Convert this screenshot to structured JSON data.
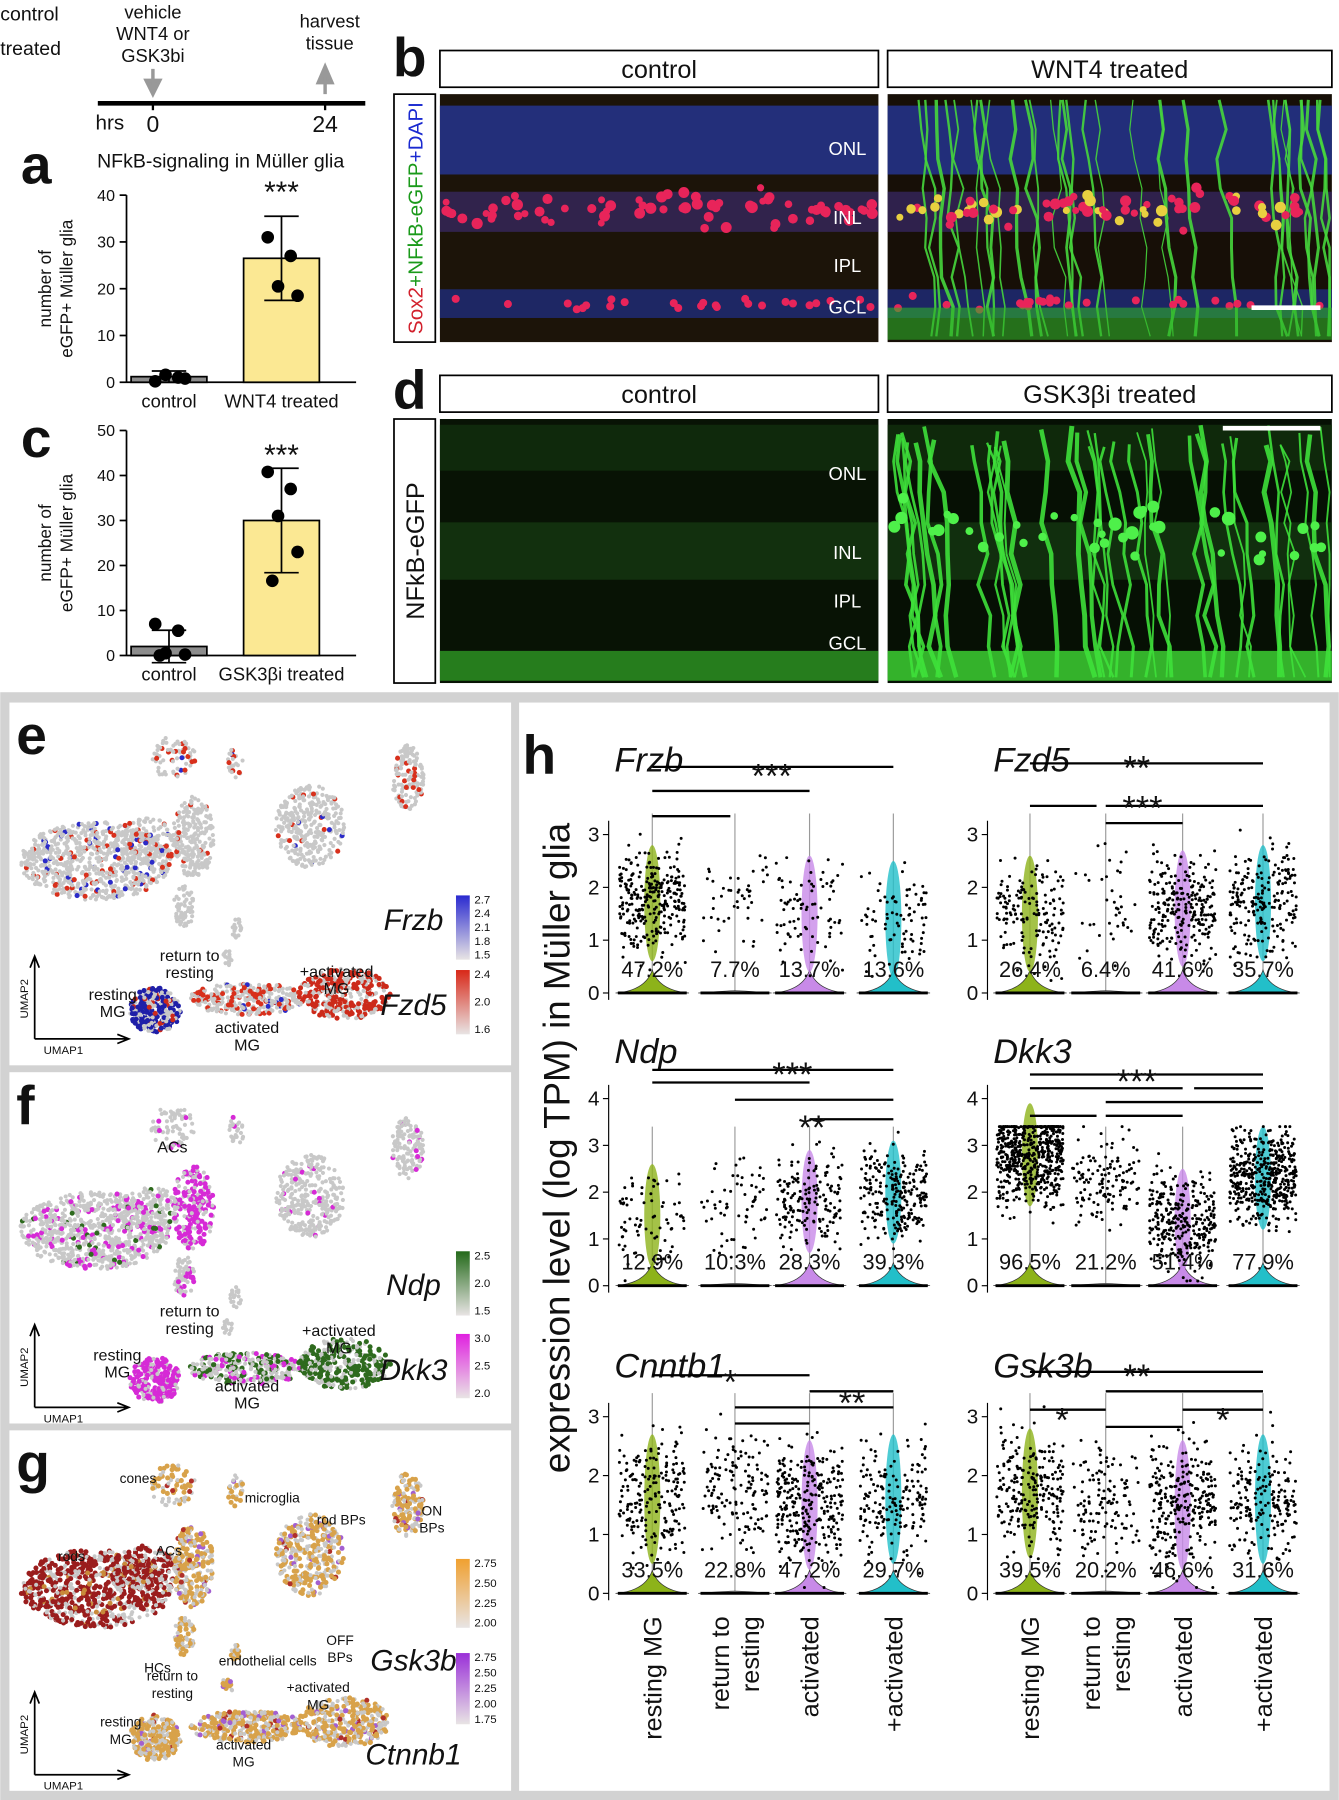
{
  "timeline": {
    "groups": [
      "control",
      "treated"
    ],
    "start_label": [
      "vehicle",
      "WNT4 or",
      "GSK3bi"
    ],
    "end_label": [
      "harvest",
      "tissue"
    ],
    "axis_label": "hrs",
    "ticks": [
      0,
      24
    ]
  },
  "panel_a": {
    "letter": "a",
    "title": "NFkB-signaling in Müller glia",
    "y_label": [
      "number of",
      "eGFP+ Müller glia"
    ],
    "significance": "***",
    "categories": [
      "control",
      "WNT4 treated"
    ],
    "values": [
      1.2,
      26.5
    ],
    "errors": [
      1.2,
      9
    ],
    "points": [
      [
        0.2,
        1,
        1.6,
        0.8
      ],
      [
        31,
        27,
        20.5,
        18.5
      ]
    ],
    "ylim": [
      0,
      40
    ],
    "yticks": [
      0,
      10,
      20,
      30,
      40
    ],
    "colors": [
      "#8c8c8c",
      "#fbe893"
    ]
  },
  "panel_c": {
    "letter": "c",
    "y_label": [
      "number of",
      "eGFP+ Müller glia"
    ],
    "significance": "***",
    "categories": [
      "control",
      "GSK3βi treated"
    ],
    "values": [
      2,
      30
    ],
    "errors": [
      3.6,
      11.6
    ],
    "points": [
      [
        7,
        5.5,
        0.5,
        0.2,
        0
      ],
      [
        40.8,
        37,
        31,
        23,
        16.6
      ]
    ],
    "ylim": [
      0,
      50
    ],
    "yticks": [
      0,
      10,
      20,
      30,
      40,
      50
    ],
    "colors": [
      "#8c8c8c",
      "#fbe893"
    ]
  },
  "panel_b": {
    "letter": "b",
    "headers": [
      "control",
      "WNT4 treated"
    ],
    "stain": [
      "Sox2",
      "+NFkB-eGFP",
      "+DAPI"
    ],
    "layers": [
      "ONL",
      "INL",
      "IPL",
      "GCL"
    ]
  },
  "panel_d": {
    "letter": "d",
    "headers": [
      "control",
      "GSK3βi treated"
    ],
    "stain": "NFkB-eGFP",
    "layers": [
      "ONL",
      "INL",
      "IPL",
      "GCL"
    ]
  },
  "panel_e": {
    "letter": "e",
    "labels": [
      [
        "return to",
        "resting"
      ],
      [
        "resting",
        "MG"
      ],
      [
        "activated",
        "MG"
      ],
      [
        "+activated",
        "MG"
      ]
    ],
    "genes": [
      "Frzb",
      "Fzd5"
    ],
    "scales": [
      [
        "2.7",
        "2.4",
        "2.1",
        "1.8",
        "1.5"
      ],
      [
        "2.4",
        "2.0",
        "1.6"
      ]
    ],
    "axes": [
      "UMAP2",
      "UMAP1"
    ]
  },
  "panel_f": {
    "letter": "f",
    "labels": [
      [
        "ACs"
      ],
      [
        "return to",
        "resting"
      ],
      [
        "resting",
        "MG"
      ],
      [
        "activated",
        "MG"
      ],
      [
        "+activated",
        "MG"
      ]
    ],
    "genes": [
      "Ndp",
      "Dkk3"
    ],
    "scales": [
      [
        "2.5",
        "2.0",
        "1.5"
      ],
      [
        "3.0",
        "2.5",
        "2.0"
      ]
    ],
    "axes": [
      "UMAP2",
      "UMAP1"
    ]
  },
  "panel_g": {
    "letter": "g",
    "labels": [
      [
        "cones"
      ],
      [
        "microglia"
      ],
      [
        "rod BPs"
      ],
      [
        "ON",
        "BPs"
      ],
      [
        "rods"
      ],
      [
        "ACs"
      ],
      [
        "OFF",
        "BPs"
      ],
      [
        "HCs"
      ],
      [
        "endothelial cells"
      ],
      [
        "return to",
        "resting"
      ],
      [
        "+activated",
        "MG"
      ],
      [
        "resting",
        "MG"
      ],
      [
        "activated",
        "MG"
      ]
    ],
    "genes": [
      "Gsk3b",
      "Ctnnb1"
    ],
    "scales": [
      [
        "2.75",
        "2.50",
        "2.25",
        "2.00"
      ],
      [
        "2.75",
        "2.50",
        "2.25",
        "2.00",
        "1.75"
      ]
    ],
    "axes": [
      "UMAP2",
      "UMAP1"
    ]
  },
  "panel_h": {
    "letter": "h",
    "y_label": "expression level (log TPM) in Müller glia",
    "groups": [
      [
        "resting MG"
      ],
      [
        "return to",
        "resting"
      ],
      [
        "activated"
      ],
      [
        "+activated"
      ]
    ],
    "plots": [
      {
        "gene": "Frzb",
        "significance": [
          "***"
        ],
        "percentages": [
          "47.2%",
          "7.7%",
          "13.7%",
          "13.6%"
        ],
        "yticks": [
          0,
          1,
          2,
          3
        ]
      },
      {
        "gene": "Fzd5",
        "significance": [
          "**",
          "***"
        ],
        "percentages": [
          "26.4%",
          "6.4%",
          "41.6%",
          "35.7%"
        ],
        "yticks": [
          0,
          1,
          2,
          3
        ]
      },
      {
        "gene": "Ndp",
        "significance": [
          "***",
          "**"
        ],
        "percentages": [
          "12.9%",
          "10.3%",
          "28.3%",
          "39.3%"
        ],
        "yticks": [
          0,
          1,
          2,
          3,
          4
        ]
      },
      {
        "gene": "Dkk3",
        "significance": [
          "***"
        ],
        "percentages": [
          "96.5%",
          "21.2%",
          "51.4%",
          "77.9%"
        ],
        "yticks": [
          0,
          1,
          2,
          3,
          4
        ]
      },
      {
        "gene": "Cnntb1",
        "significance": [
          "*",
          "**"
        ],
        "percentages": [
          "33.5%",
          "22.8%",
          "47.2%",
          "29.7%"
        ],
        "yticks": [
          0,
          1,
          2,
          3
        ]
      },
      {
        "gene": "Gsk3b",
        "significance": [
          "**",
          "*",
          "*"
        ],
        "percentages": [
          "39.5%",
          "20.2%",
          "46.6%",
          "31.6%"
        ],
        "yticks": [
          0,
          1,
          2,
          3
        ]
      }
    ]
  }
}
